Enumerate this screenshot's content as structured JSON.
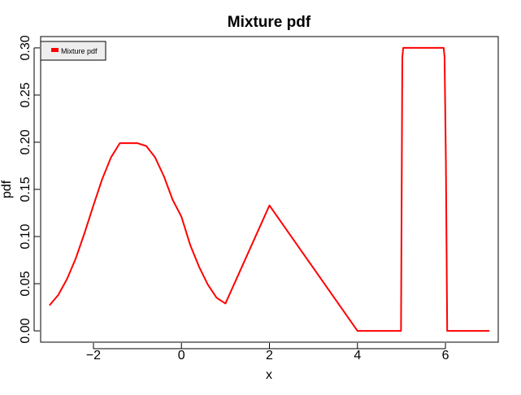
{
  "chart_data": {
    "type": "line",
    "title": "Mixture pdf",
    "xlabel": "x",
    "ylabel": "pdf",
    "xlim": [
      -3.2,
      7.2
    ],
    "ylim": [
      -0.012,
      0.312
    ],
    "xticks": [
      -2,
      0,
      2,
      4,
      6
    ],
    "xtick_labels": [
      "−2",
      "0",
      "2",
      "4",
      "6"
    ],
    "yticks": [
      0.0,
      0.05,
      0.1,
      0.15,
      0.2,
      0.25,
      0.3
    ],
    "ytick_labels": [
      "0.00",
      "0.05",
      "0.10",
      "0.15",
      "0.20",
      "0.25",
      "0.30"
    ],
    "legend": {
      "position": "top-left",
      "entries": [
        "Mixture pdf"
      ]
    },
    "grid": false,
    "series": [
      {
        "name": "Mixture pdf",
        "color": "#ff0000",
        "x": [
          -3.0,
          -2.8,
          -2.6,
          -2.4,
          -2.2,
          -2.0,
          -1.8,
          -1.6,
          -1.4,
          -1.2,
          -1.0,
          -0.8,
          -0.6,
          -0.4,
          -0.2,
          0.0,
          0.2,
          0.4,
          0.6,
          0.8,
          1.0,
          2.0,
          4.0,
          4.99,
          5.02,
          5.04,
          5.96,
          5.98,
          6.01,
          6.04,
          7.0
        ],
        "y": [
          0.027,
          0.038,
          0.055,
          0.077,
          0.104,
          0.133,
          0.161,
          0.184,
          0.199,
          0.199,
          0.199,
          0.196,
          0.184,
          0.164,
          0.139,
          0.121,
          0.091,
          0.068,
          0.049,
          0.035,
          0.029,
          0.133,
          0.0,
          0.0,
          0.29,
          0.3,
          0.3,
          0.29,
          0.18,
          0.0,
          0.0
        ]
      }
    ]
  }
}
